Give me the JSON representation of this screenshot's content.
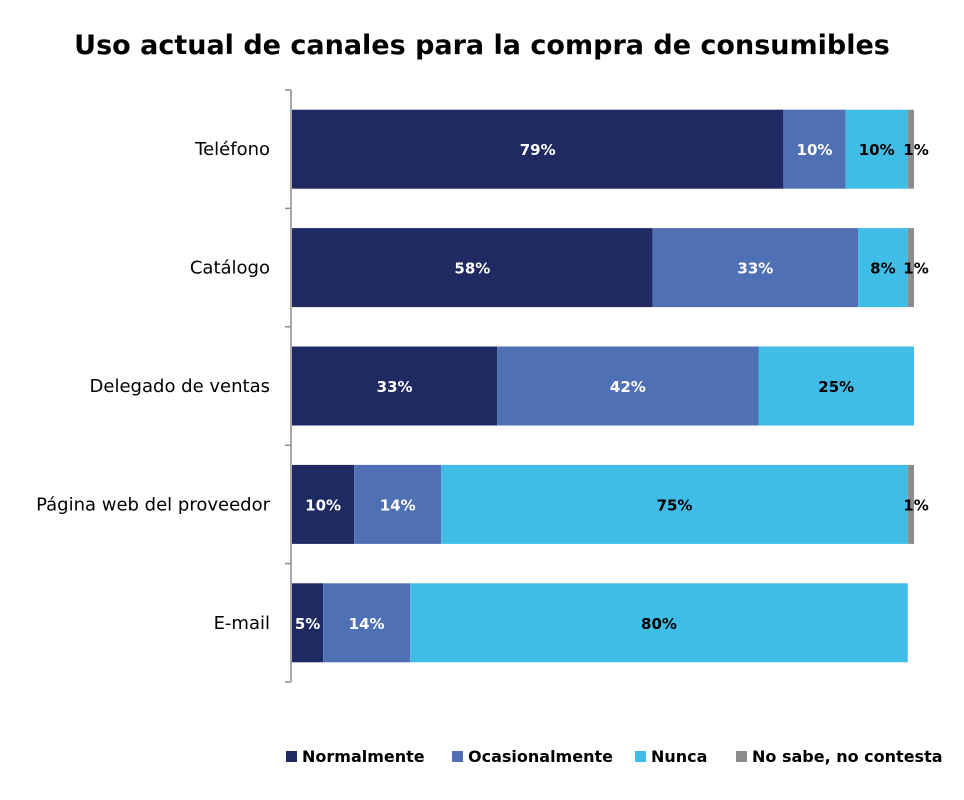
{
  "chart_data": {
    "type": "bar",
    "orientation": "horizontal",
    "stacked": true,
    "title": "Uso actual de canales para la compra de consumibles",
    "categories": [
      "Teléfono",
      "Catálogo",
      "Delegado de ventas",
      "Página web del proveedor",
      "E-mail"
    ],
    "series": [
      {
        "name": "Normalmente",
        "color": "#1f2a63",
        "values": [
          79,
          58,
          33,
          10,
          5
        ],
        "labels": [
          "79%",
          "58%",
          "33%",
          "10%",
          "5%"
        ]
      },
      {
        "name": "Ocasionalmente",
        "color": "#4f70b5",
        "values": [
          10,
          33,
          42,
          14,
          14
        ],
        "labels": [
          "10%",
          "33%",
          "42%",
          "14%",
          "14%"
        ]
      },
      {
        "name": "Nunca",
        "color": "#3fbde6",
        "values": [
          10,
          8,
          25,
          75,
          80
        ],
        "labels": [
          "10%",
          "8%",
          "25%",
          "75%",
          "80%"
        ]
      },
      {
        "name": "No sabe, no contesta",
        "color": "#8c8c8c",
        "values": [
          1,
          1,
          0,
          1,
          0
        ],
        "labels": [
          "1%",
          "1%",
          "",
          "1%",
          ""
        ]
      }
    ],
    "xlim": [
      0,
      100
    ],
    "grid": false,
    "legend": "bottom"
  }
}
